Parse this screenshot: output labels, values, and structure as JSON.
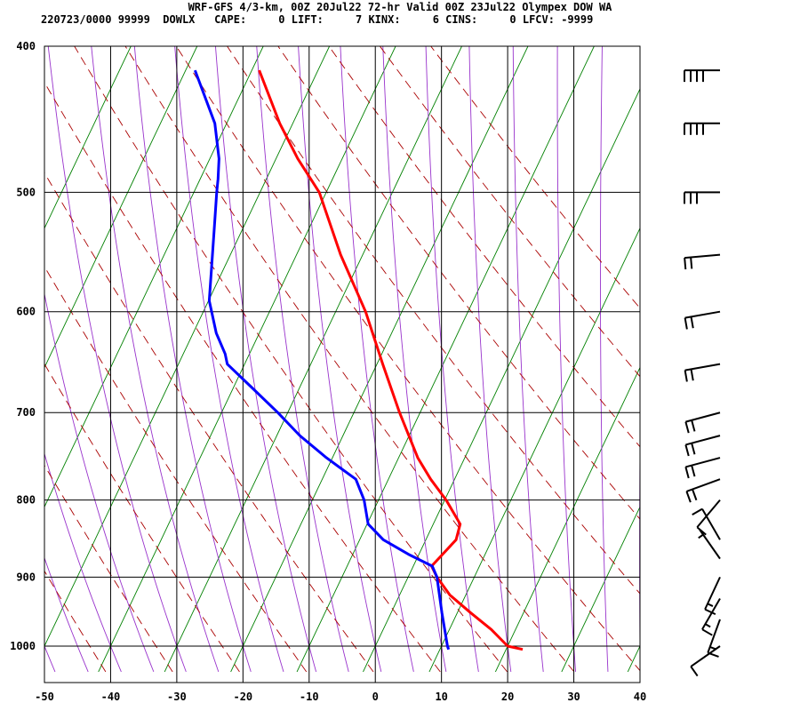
{
  "header": {
    "line1": "WRF-GFS 4/3-km, 00Z 20Jul22 72-hr Valid 00Z 23Jul22 Olympex DOW WA",
    "line2": "220723/0000 99999  DOWLX   CAPE:     0 LIFT:     7 KINX:     6 CINS:     0 LFCV: -9999"
  },
  "chart_data": {
    "type": "line",
    "chart_kind": "skew-T log-P sounding",
    "xlim": [
      -50,
      40
    ],
    "ylim": [
      1040,
      400
    ],
    "y_scale": "log",
    "x_ticks": [
      -50,
      -40,
      -30,
      -20,
      -10,
      0,
      10,
      20,
      30,
      40
    ],
    "y_ticks": [
      400,
      500,
      600,
      700,
      800,
      900,
      1000
    ],
    "grid": true,
    "colors": {
      "temperature": "#ff0000",
      "dewpoint": "#0000ff",
      "grid": "#000000",
      "dry_adiabat": "#aa0000",
      "moist_adiabat": "#9933cc",
      "green_line": "#008000",
      "barb": "#000000"
    },
    "series": [
      {
        "pressure": [
          1005,
          1000,
          975,
          950,
          925,
          900,
          885,
          870,
          850,
          830,
          800,
          775,
          750,
          700,
          650,
          600,
          550,
          500,
          475,
          450,
          415
        ],
        "values": [
          22.3,
          20,
          17.4,
          14.1,
          10.9,
          8.8,
          7.9,
          9.4,
          11.4,
          11.9,
          9.6,
          7.1,
          5,
          1.9,
          -1,
          -4,
          -8.2,
          -11.9,
          -15.4,
          -18.4,
          -21.9
        ]
      },
      {
        "pressure": [
          1005,
          1000,
          950,
          900,
          885,
          870,
          850,
          830,
          800,
          775,
          750,
          725,
          700,
          675,
          650,
          640,
          620,
          590,
          560,
          530,
          500,
          490,
          475,
          450,
          415
        ],
        "values": [
          11.1,
          10.9,
          9.8,
          8.8,
          8,
          4.5,
          0.4,
          -2,
          -2.8,
          -4.2,
          -8.8,
          -13,
          -16.5,
          -20.4,
          -24.5,
          -24.9,
          -26.4,
          -27.7,
          -27.6,
          -27.5,
          -27.4,
          -27.3,
          -27.3,
          -28.2,
          -31.6
        ]
      }
    ],
    "wind_barbs": [
      {
        "pressure": 1000,
        "dir": 235,
        "spd": 10
      },
      {
        "pressure": 960,
        "dir": 200,
        "spd": 15
      },
      {
        "pressure": 930,
        "dir": 210,
        "spd": 15
      },
      {
        "pressure": 900,
        "dir": 205,
        "spd": 15
      },
      {
        "pressure": 875,
        "dir": 325,
        "spd": 5
      },
      {
        "pressure": 850,
        "dir": 330,
        "spd": 10
      },
      {
        "pressure": 800,
        "dir": 220,
        "spd": 10
      },
      {
        "pressure": 775,
        "dir": 250,
        "spd": 20
      },
      {
        "pressure": 750,
        "dir": 255,
        "spd": 20
      },
      {
        "pressure": 725,
        "dir": 255,
        "spd": 20
      },
      {
        "pressure": 700,
        "dir": 255,
        "spd": 20
      },
      {
        "pressure": 650,
        "dir": 260,
        "spd": 20
      },
      {
        "pressure": 600,
        "dir": 260,
        "spd": 20
      },
      {
        "pressure": 550,
        "dir": 265,
        "spd": 20
      },
      {
        "pressure": 500,
        "dir": 270,
        "spd": 30
      },
      {
        "pressure": 450,
        "dir": 270,
        "spd": 40
      },
      {
        "pressure": 415,
        "dir": 270,
        "spd": 40
      }
    ]
  }
}
